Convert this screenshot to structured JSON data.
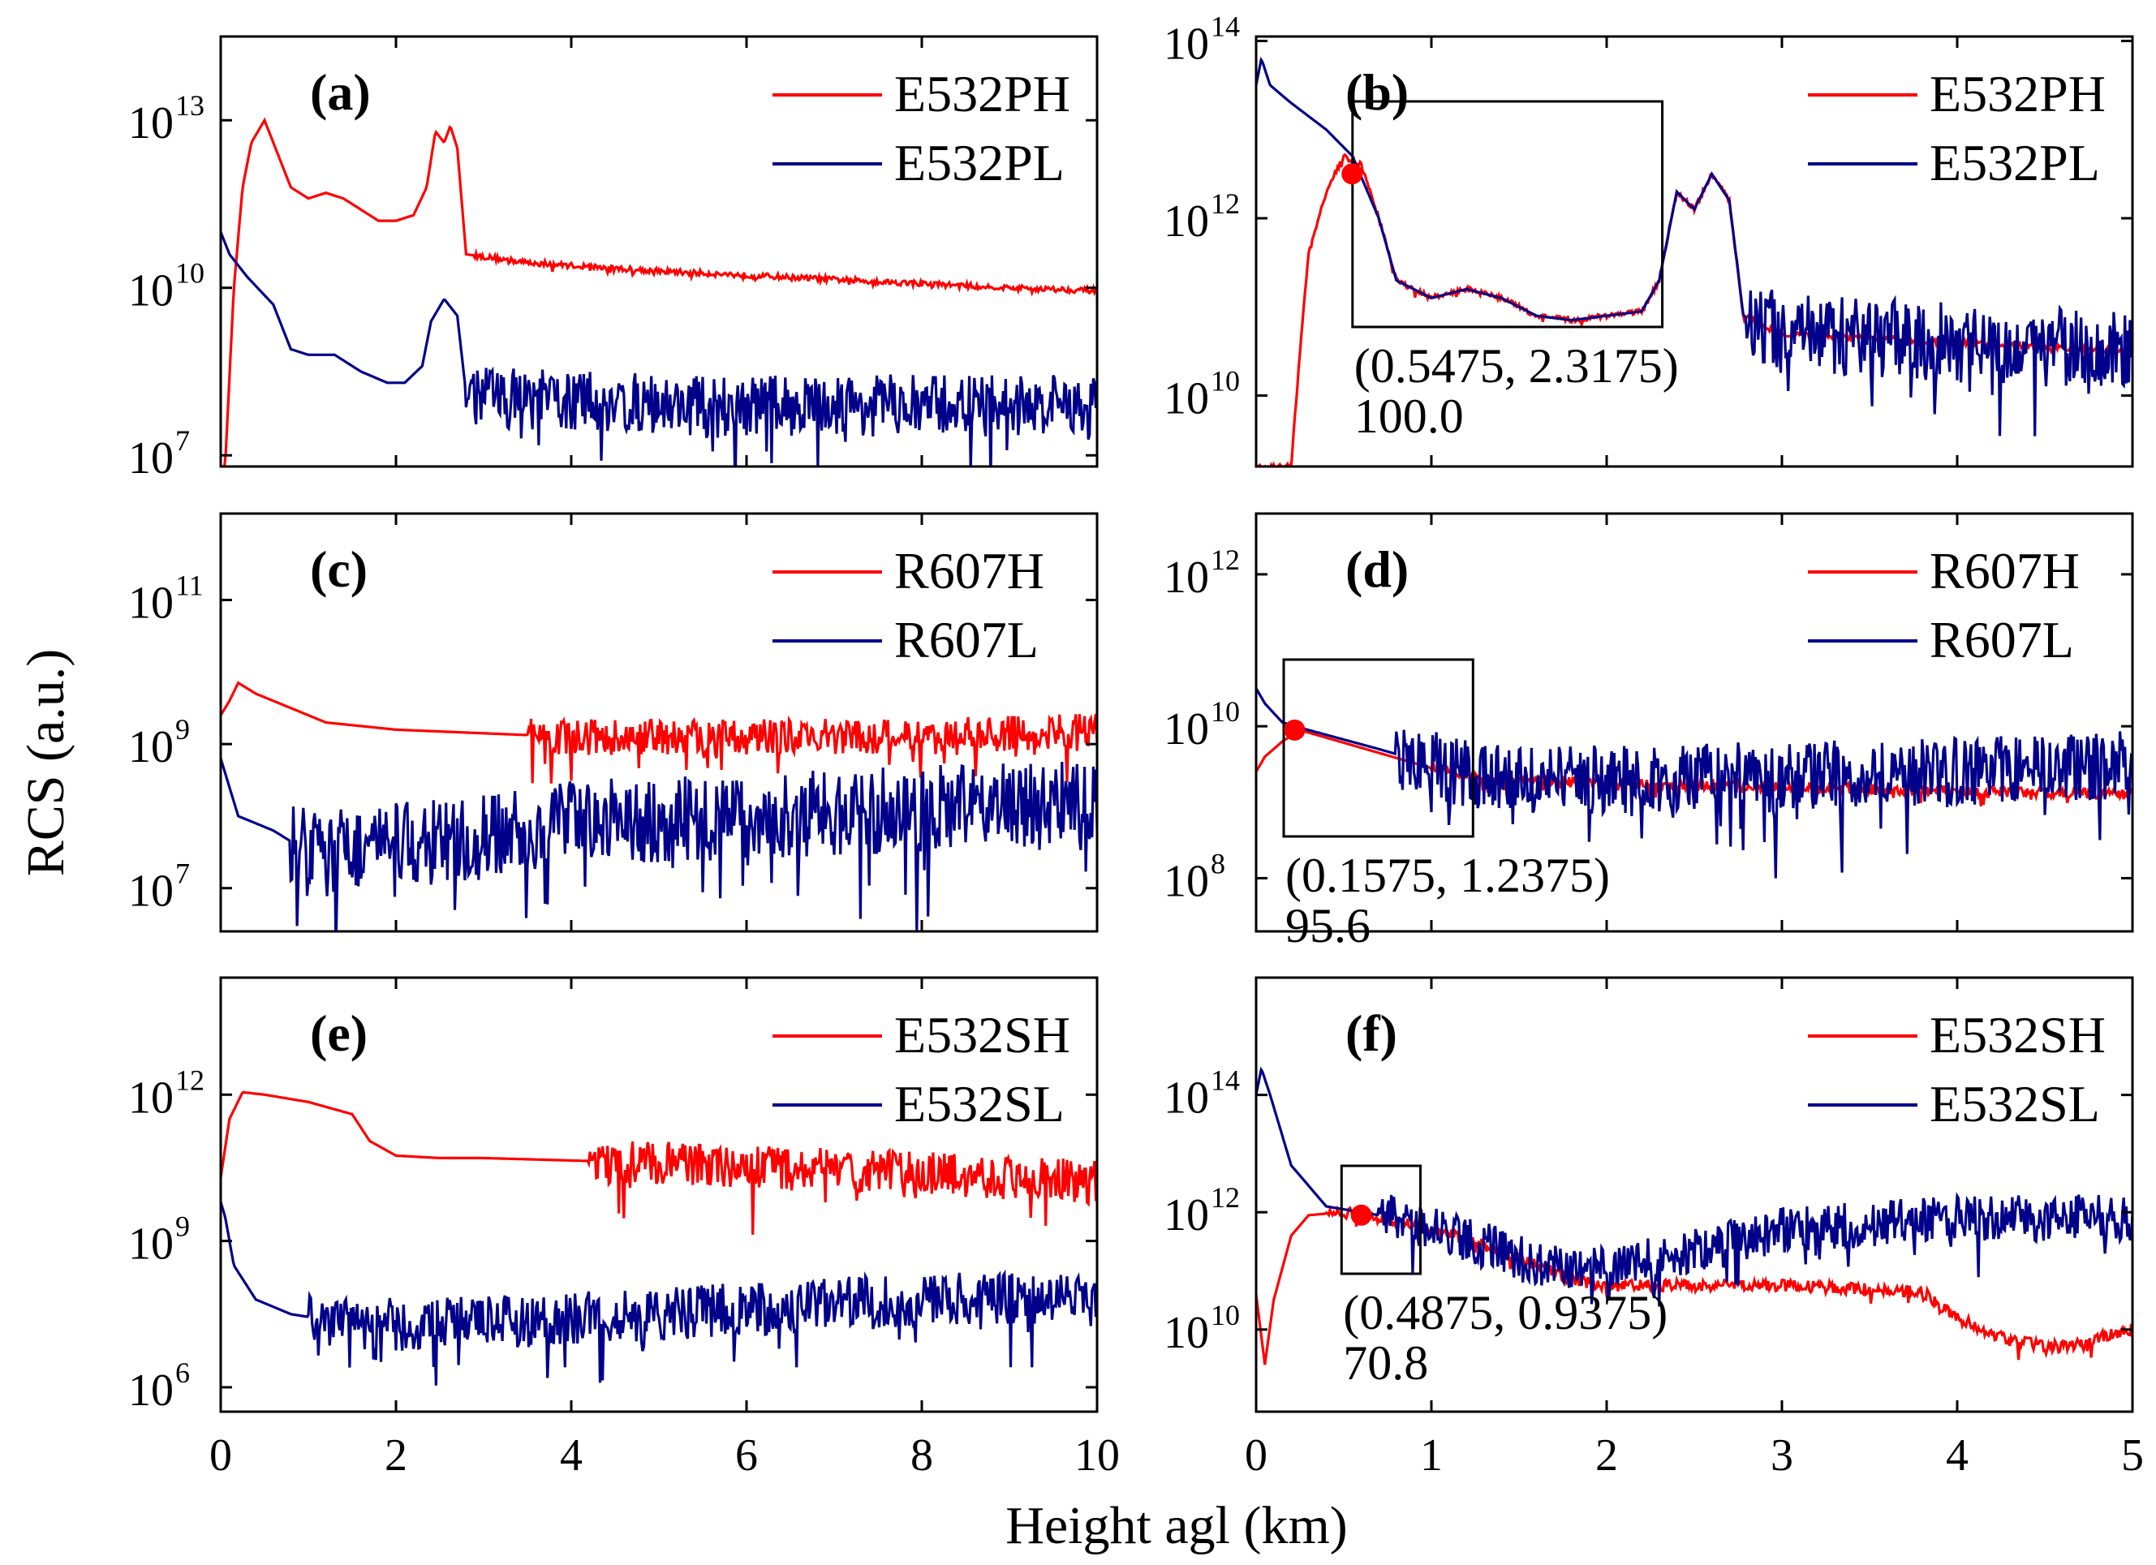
{
  "figure": {
    "ylabel": "RCS (a.u.)",
    "xlabel": "Height agl (km)"
  },
  "colors": {
    "high": "#ff0000",
    "low": "#00008b",
    "marker": "#ff0000",
    "box": "#000000"
  },
  "chart_data": [
    {
      "id": "a",
      "panel_label": "(a)",
      "type": "line",
      "xlim": [
        0,
        10
      ],
      "ylog": true,
      "ylim_log10": [
        6.8,
        14.5
      ],
      "xticks": [],
      "yticks": [
        13,
        10,
        7
      ],
      "ytick_labels": [
        {
          "base": "10",
          "exp": "13"
        },
        {
          "base": "10",
          "exp": "10"
        },
        {
          "base": "10",
          "exp": "7"
        }
      ],
      "series": [
        {
          "name": "E532PH",
          "color": "#ff0000",
          "points": [
            [
              0.05,
              6.8
            ],
            [
              0.15,
              10.0
            ],
            [
              0.25,
              11.8
            ],
            [
              0.35,
              12.6
            ],
            [
              0.5,
              13.0
            ],
            [
              0.6,
              12.6
            ],
            [
              0.8,
              11.8
            ],
            [
              1.0,
              11.6
            ],
            [
              1.2,
              11.7
            ],
            [
              1.4,
              11.6
            ],
            [
              1.6,
              11.4
            ],
            [
              1.8,
              11.2
            ],
            [
              2.0,
              11.2
            ],
            [
              2.2,
              11.3
            ],
            [
              2.35,
              11.8
            ],
            [
              2.45,
              12.8
            ],
            [
              2.55,
              12.6
            ],
            [
              2.62,
              12.9
            ],
            [
              2.7,
              12.5
            ],
            [
              2.8,
              10.6
            ],
            [
              3.5,
              10.45
            ],
            [
              5,
              10.3
            ],
            [
              7,
              10.15
            ],
            [
              9,
              10.0
            ],
            [
              10,
              9.95
            ]
          ],
          "noise": 0.05,
          "noise_start": 2.9
        },
        {
          "name": "E532PL",
          "color": "#00008b",
          "points": [
            [
              0.0,
              11.0
            ],
            [
              0.1,
              10.6
            ],
            [
              0.3,
              10.2
            ],
            [
              0.6,
              9.7
            ],
            [
              0.8,
              8.9
            ],
            [
              1.0,
              8.8
            ],
            [
              1.3,
              8.8
            ],
            [
              1.6,
              8.5
            ],
            [
              1.9,
              8.3
            ],
            [
              2.1,
              8.3
            ],
            [
              2.3,
              8.6
            ],
            [
              2.4,
              9.4
            ],
            [
              2.55,
              9.8
            ],
            [
              2.7,
              9.5
            ],
            [
              2.8,
              8.1
            ],
            [
              3.5,
              8.0
            ],
            [
              5,
              7.9
            ],
            [
              7,
              7.9
            ],
            [
              10,
              7.9
            ]
          ],
          "noise": 0.55,
          "noise_start": 2.8
        }
      ]
    },
    {
      "id": "b",
      "panel_label": "(b)",
      "type": "line",
      "xlim": [
        0,
        5
      ],
      "ylog": true,
      "ylim_log10": [
        9.2,
        14.05
      ],
      "xticks": [],
      "yticks": [
        14,
        12,
        10
      ],
      "ytick_labels": [
        {
          "base": "10",
          "exp": "14"
        },
        {
          "base": "10",
          "exp": "12"
        },
        {
          "base": "10",
          "exp": "10"
        }
      ],
      "series": [
        {
          "name": "E532PH",
          "color": "#ff0000",
          "points": [
            [
              0.2,
              9.2
            ],
            [
              0.25,
              10.5
            ],
            [
              0.3,
              11.6
            ],
            [
              0.4,
              12.3
            ],
            [
              0.5,
              12.7
            ],
            [
              0.6,
              12.6
            ],
            [
              0.7,
              12.0
            ],
            [
              0.8,
              11.3
            ],
            [
              0.9,
              11.2
            ],
            [
              1.0,
              11.1
            ],
            [
              1.2,
              11.2
            ],
            [
              1.4,
              11.1
            ],
            [
              1.6,
              10.9
            ],
            [
              1.8,
              10.85
            ],
            [
              2.0,
              10.9
            ],
            [
              2.2,
              10.95
            ],
            [
              2.3,
              11.3
            ],
            [
              2.4,
              12.3
            ],
            [
              2.5,
              12.1
            ],
            [
              2.6,
              12.5
            ],
            [
              2.7,
              12.2
            ],
            [
              2.78,
              10.9
            ],
            [
              3.0,
              10.7
            ],
            [
              4,
              10.6
            ],
            [
              5,
              10.5
            ]
          ],
          "noise": 0.03,
          "noise_start": 0
        },
        {
          "name": "E532PL",
          "color": "#00008b",
          "points": [
            [
              0.0,
              13.5
            ],
            [
              0.03,
              13.8
            ],
            [
              0.08,
              13.5
            ],
            [
              0.2,
              13.3
            ],
            [
              0.4,
              13.0
            ],
            [
              0.55,
              12.7
            ],
            [
              0.7,
              12.0
            ],
            [
              0.8,
              11.3
            ],
            [
              0.9,
              11.2
            ],
            [
              1.0,
              11.1
            ],
            [
              1.2,
              11.2
            ],
            [
              1.4,
              11.1
            ],
            [
              1.6,
              10.9
            ],
            [
              1.8,
              10.85
            ],
            [
              2.0,
              10.9
            ],
            [
              2.2,
              10.95
            ],
            [
              2.3,
              11.3
            ],
            [
              2.4,
              12.3
            ],
            [
              2.5,
              12.1
            ],
            [
              2.6,
              12.5
            ],
            [
              2.7,
              12.2
            ],
            [
              2.78,
              10.9
            ],
            [
              3.0,
              10.7
            ],
            [
              4,
              10.6
            ],
            [
              5,
              10.5
            ]
          ],
          "noise": 0.45,
          "noise_start": 2.8
        }
      ],
      "annotation": {
        "box": [
          0.55,
          2.3175
        ],
        "marker": [
          0.5475,
          12.5
        ],
        "coord_text": "(0.5475, 2.3175)",
        "value_text": "100.0"
      }
    },
    {
      "id": "c",
      "panel_label": "(c)",
      "type": "line",
      "xlim": [
        0,
        10
      ],
      "ylog": true,
      "ylim_log10": [
        6.4,
        12.2
      ],
      "xticks": [],
      "yticks": [
        11,
        9,
        7
      ],
      "ytick_labels": [
        {
          "base": "10",
          "exp": "11"
        },
        {
          "base": "10",
          "exp": "9"
        },
        {
          "base": "10",
          "exp": "7"
        }
      ],
      "series": [
        {
          "name": "R607H",
          "color": "#ff0000",
          "points": [
            [
              0.0,
              9.4
            ],
            [
              0.1,
              9.6
            ],
            [
              0.2,
              9.85
            ],
            [
              0.4,
              9.7
            ],
            [
              0.8,
              9.5
            ],
            [
              1.2,
              9.3
            ],
            [
              2.0,
              9.2
            ],
            [
              3,
              9.15
            ],
            [
              4,
              9.1
            ],
            [
              6,
              9.1
            ],
            [
              8,
              9.1
            ],
            [
              10,
              9.2
            ]
          ],
          "noise": 0.25,
          "noise_start": 3.5
        },
        {
          "name": "R607L",
          "color": "#00008b",
          "points": [
            [
              0.0,
              8.8
            ],
            [
              0.2,
              8.0
            ],
            [
              0.6,
              7.8
            ],
            [
              1.0,
              7.5
            ],
            [
              2,
              7.6
            ],
            [
              3,
              7.7
            ],
            [
              4,
              7.9
            ],
            [
              6,
              8.0
            ],
            [
              8,
              8.1
            ],
            [
              10,
              8.2
            ]
          ],
          "noise": 0.6,
          "noise_start": 0.8
        }
      ]
    },
    {
      "id": "d",
      "panel_label": "(d)",
      "type": "line",
      "xlim": [
        0,
        5
      ],
      "ylog": true,
      "ylim_log10": [
        7.3,
        12.8
      ],
      "xticks": [],
      "yticks": [
        12,
        10,
        8
      ],
      "ytick_labels": [
        {
          "base": "10",
          "exp": "12"
        },
        {
          "base": "10",
          "exp": "10"
        },
        {
          "base": "10",
          "exp": "8"
        }
      ],
      "series": [
        {
          "name": "R607H",
          "color": "#ff0000",
          "points": [
            [
              0.0,
              9.4
            ],
            [
              0.05,
              9.6
            ],
            [
              0.15,
              9.8
            ],
            [
              0.25,
              9.95
            ],
            [
              0.4,
              9.85
            ],
            [
              0.7,
              9.65
            ],
            [
              1.0,
              9.45
            ],
            [
              1.3,
              9.3
            ],
            [
              2,
              9.25
            ],
            [
              3,
              9.2
            ],
            [
              4,
              9.15
            ],
            [
              5,
              9.1
            ]
          ],
          "noise": 0.07,
          "noise_start": 1.0
        },
        {
          "name": "R607L",
          "color": "#00008b",
          "points": [
            [
              0.0,
              10.5
            ],
            [
              0.05,
              10.3
            ],
            [
              0.15,
              10.05
            ],
            [
              0.3,
              9.95
            ],
            [
              0.7,
              9.7
            ],
            [
              1.0,
              9.5
            ],
            [
              1.3,
              9.3
            ],
            [
              2,
              9.3
            ],
            [
              3,
              9.35
            ],
            [
              4,
              9.4
            ],
            [
              5,
              9.5
            ]
          ],
          "noise": 0.45,
          "noise_start": 0.8
        }
      ],
      "annotation": {
        "box": [
          0.1575,
          1.2375
        ],
        "marker": [
          0.22,
          9.95
        ],
        "coord_text": "(0.1575, 1.2375)",
        "value_text": "95.6"
      }
    },
    {
      "id": "e",
      "panel_label": "(e)",
      "type": "line",
      "xlim": [
        0,
        10
      ],
      "ylog": true,
      "ylim_log10": [
        5.5,
        14.4
      ],
      "xticks": [
        0,
        2,
        4,
        6,
        8,
        10
      ],
      "yticks": [
        12,
        9,
        6
      ],
      "ytick_labels": [
        {
          "base": "10",
          "exp": "12"
        },
        {
          "base": "10",
          "exp": "9"
        },
        {
          "base": "10",
          "exp": "6"
        }
      ],
      "series": [
        {
          "name": "E532SH",
          "color": "#ff0000",
          "points": [
            [
              0.0,
              10.3
            ],
            [
              0.1,
              11.5
            ],
            [
              0.25,
              12.05
            ],
            [
              0.5,
              12.0
            ],
            [
              1.0,
              11.85
            ],
            [
              1.5,
              11.6
            ],
            [
              1.7,
              11.05
            ],
            [
              2.0,
              10.75
            ],
            [
              2.5,
              10.7
            ],
            [
              3,
              10.7
            ],
            [
              4,
              10.65
            ],
            [
              5,
              10.6
            ],
            [
              6,
              10.5
            ],
            [
              8,
              10.4
            ],
            [
              10,
              10.2
            ]
          ],
          "noise": 0.45,
          "noise_start": 4.2
        },
        {
          "name": "E532SL",
          "color": "#00008b",
          "points": [
            [
              0.0,
              9.8
            ],
            [
              0.05,
              9.5
            ],
            [
              0.15,
              8.5
            ],
            [
              0.4,
              7.8
            ],
            [
              0.8,
              7.5
            ],
            [
              1.5,
              7.3
            ],
            [
              2.5,
              7.3
            ],
            [
              4,
              7.4
            ],
            [
              6,
              7.6
            ],
            [
              8,
              7.8
            ],
            [
              10,
              7.8
            ]
          ],
          "noise": 0.55,
          "noise_start": 1.0
        }
      ]
    },
    {
      "id": "f",
      "panel_label": "(f)",
      "type": "line",
      "xlim": [
        0,
        5
      ],
      "ylog": true,
      "ylim_log10": [
        8.6,
        16.0
      ],
      "xticks": [
        0,
        1,
        2,
        3,
        4,
        5
      ],
      "yticks": [
        14,
        12,
        10
      ],
      "ytick_labels": [
        {
          "base": "10",
          "exp": "14"
        },
        {
          "base": "10",
          "exp": "12"
        },
        {
          "base": "10",
          "exp": "10"
        }
      ],
      "series": [
        {
          "name": "E532SH",
          "color": "#ff0000",
          "points": [
            [
              0.0,
              10.6
            ],
            [
              0.05,
              9.4
            ],
            [
              0.1,
              10.5
            ],
            [
              0.2,
              11.6
            ],
            [
              0.3,
              11.95
            ],
            [
              0.5,
              12.0
            ],
            [
              0.8,
              11.85
            ],
            [
              1.2,
              11.55
            ],
            [
              1.6,
              11.1
            ],
            [
              1.8,
              10.85
            ],
            [
              2.0,
              10.75
            ],
            [
              3,
              10.75
            ],
            [
              3.8,
              10.65
            ],
            [
              4.0,
              10.2
            ],
            [
              4.3,
              9.8
            ],
            [
              4.6,
              9.7
            ],
            [
              5.0,
              10.0
            ]
          ],
          "noise": 0.1,
          "noise_start": 0.4
        },
        {
          "name": "E532SL",
          "color": "#00008b",
          "points": [
            [
              0.0,
              14.0
            ],
            [
              0.03,
              14.45
            ],
            [
              0.08,
              14.0
            ],
            [
              0.2,
              12.8
            ],
            [
              0.4,
              12.1
            ],
            [
              0.8,
              11.9
            ],
            [
              1.2,
              11.55
            ],
            [
              1.6,
              11.1
            ],
            [
              2.0,
              11.0
            ],
            [
              3,
              11.7
            ],
            [
              4,
              11.9
            ],
            [
              5,
              11.9
            ]
          ],
          "noise": 0.4,
          "noise_start": 0.7
        }
      ],
      "annotation": {
        "box": [
          0.4875,
          0.9375
        ],
        "marker": [
          0.6,
          11.95
        ],
        "coord_text": "(0.4875, 0.9375)",
        "value_text": "70.8"
      }
    }
  ],
  "xtick_labels_left": [
    "0",
    "2",
    "4",
    "6",
    "8",
    "10"
  ],
  "xtick_labels_right": [
    "0",
    "1",
    "2",
    "3",
    "4",
    "5"
  ]
}
